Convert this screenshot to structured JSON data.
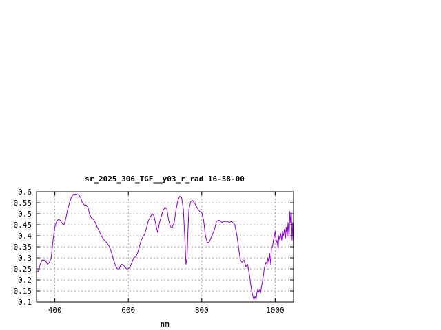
{
  "chart_data": {
    "type": "line",
    "title": "sr_2025_306_TGF__y03_r_rad 16-58-00",
    "xlabel": "nm",
    "ylabel": "",
    "xlim": [
      350,
      1050
    ],
    "ylim": [
      0.1,
      0.6
    ],
    "grid": true,
    "xticks": [
      400,
      600,
      800,
      1000
    ],
    "yticks": [
      0.1,
      0.15,
      0.2,
      0.25,
      0.3,
      0.35,
      0.4,
      0.45,
      0.5,
      0.55,
      0.6
    ],
    "ytick_labels": [
      "0.1",
      "0.15",
      "0.2",
      "0.25",
      "0.3",
      "0.35",
      "0.4",
      "0.45",
      "0.5",
      "0.55",
      "0.6"
    ],
    "line_color": "#8b00c8",
    "series": [
      {
        "x": [
          350,
          355,
          360,
          365,
          370,
          375,
          380,
          385,
          390,
          395,
          400,
          405,
          410,
          415,
          420,
          425,
          430,
          435,
          440,
          445,
          450,
          455,
          460,
          465,
          470,
          475,
          480,
          485,
          490,
          495,
          500,
          505,
          510,
          515,
          520,
          525,
          530,
          535,
          540,
          545,
          550,
          555,
          560,
          565,
          570,
          575,
          580,
          585,
          590,
          595,
          600,
          605,
          610,
          615,
          620,
          625,
          630,
          635,
          640,
          645,
          650,
          655,
          660,
          665,
          670,
          675,
          680,
          685,
          690,
          695,
          700,
          705,
          710,
          715,
          720,
          725,
          730,
          735,
          740,
          745,
          750,
          755,
          757,
          760,
          762,
          765,
          770,
          775,
          780,
          785,
          790,
          795,
          800,
          805,
          810,
          815,
          820,
          825,
          830,
          835,
          840,
          845,
          850,
          855,
          860,
          865,
          870,
          875,
          880,
          885,
          890,
          895,
          900,
          905,
          910,
          915,
          920,
          925,
          930,
          935,
          940,
          942,
          945,
          948,
          950,
          953,
          955,
          958,
          960,
          963,
          965,
          968,
          970,
          973,
          975,
          978,
          980,
          983,
          985,
          988,
          990,
          993,
          995,
          998,
          1000,
          1003,
          1005,
          1008,
          1010,
          1013,
          1015,
          1018,
          1020,
          1023,
          1025,
          1028,
          1030,
          1033,
          1035,
          1038,
          1040,
          1042,
          1044,
          1046,
          1048,
          1050
        ],
        "y": [
          0.24,
          0.24,
          0.27,
          0.29,
          0.29,
          0.285,
          0.27,
          0.28,
          0.3,
          0.38,
          0.44,
          0.465,
          0.475,
          0.47,
          0.455,
          0.45,
          0.48,
          0.52,
          0.55,
          0.575,
          0.588,
          0.59,
          0.588,
          0.585,
          0.575,
          0.55,
          0.54,
          0.54,
          0.53,
          0.495,
          0.48,
          0.475,
          0.46,
          0.44,
          0.425,
          0.405,
          0.39,
          0.38,
          0.37,
          0.36,
          0.345,
          0.32,
          0.29,
          0.265,
          0.25,
          0.25,
          0.27,
          0.27,
          0.26,
          0.25,
          0.25,
          0.26,
          0.28,
          0.3,
          0.305,
          0.32,
          0.35,
          0.38,
          0.395,
          0.41,
          0.44,
          0.47,
          0.485,
          0.5,
          0.49,
          0.45,
          0.415,
          0.46,
          0.49,
          0.515,
          0.53,
          0.52,
          0.47,
          0.44,
          0.44,
          0.46,
          0.52,
          0.56,
          0.58,
          0.575,
          0.52,
          0.35,
          0.27,
          0.3,
          0.4,
          0.52,
          0.555,
          0.56,
          0.55,
          0.535,
          0.52,
          0.51,
          0.505,
          0.47,
          0.4,
          0.37,
          0.37,
          0.39,
          0.41,
          0.43,
          0.465,
          0.47,
          0.47,
          0.46,
          0.465,
          0.465,
          0.465,
          0.46,
          0.465,
          0.46,
          0.45,
          0.41,
          0.35,
          0.29,
          0.28,
          0.29,
          0.26,
          0.27,
          0.22,
          0.16,
          0.12,
          0.11,
          0.125,
          0.11,
          0.14,
          0.16,
          0.145,
          0.155,
          0.14,
          0.17,
          0.19,
          0.22,
          0.25,
          0.27,
          0.28,
          0.27,
          0.3,
          0.28,
          0.32,
          0.27,
          0.35,
          0.35,
          0.38,
          0.4,
          0.42,
          0.37,
          0.38,
          0.34,
          0.4,
          0.38,
          0.41,
          0.38,
          0.42,
          0.4,
          0.43,
          0.39,
          0.44,
          0.4,
          0.46,
          0.39,
          0.51,
          0.46,
          0.505,
          0.38,
          0.46,
          0.345
        ]
      }
    ]
  }
}
